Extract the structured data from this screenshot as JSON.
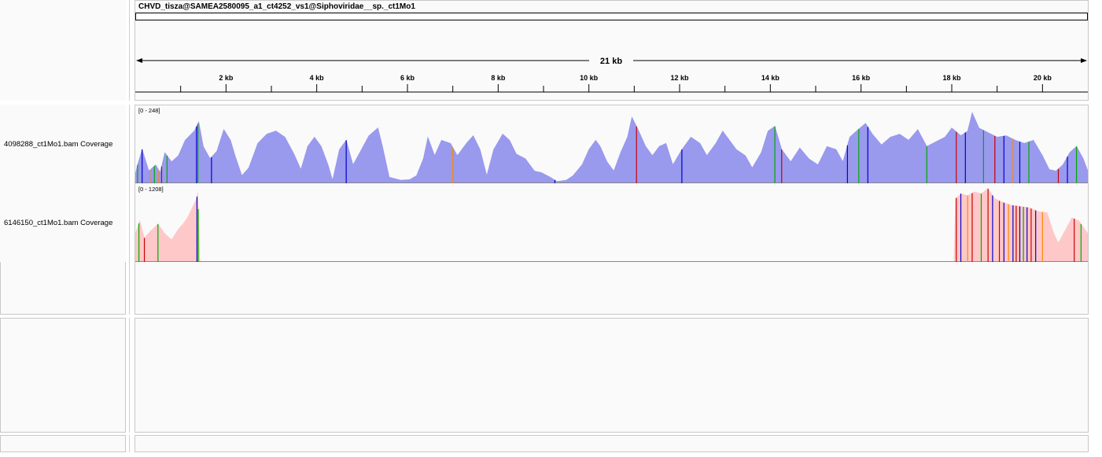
{
  "header": {
    "chromosome_name": "CHVD_tisza@SAMEA2580095_a1_ct4252_vs1@Siphoviridae__sp._ct1Mo1",
    "span_label": "21 kb",
    "ruler_ticks": [
      "2 kb",
      "4 kb",
      "6 kb",
      "8 kb",
      "10 kb",
      "12 kb",
      "14 kb",
      "16 kb",
      "18 kb",
      "20 kb"
    ],
    "genome_length_kb": 21
  },
  "tracks": [
    {
      "name": "4098288_ct1Mo1.bam Coverage",
      "range": "[0 - 248]",
      "color": "#9999ee",
      "max": 248,
      "profile": [
        [
          0.0,
          30
        ],
        [
          0.05,
          60
        ],
        [
          0.15,
          110
        ],
        [
          0.3,
          40
        ],
        [
          0.45,
          60
        ],
        [
          0.55,
          35
        ],
        [
          0.65,
          100
        ],
        [
          0.8,
          70
        ],
        [
          0.95,
          90
        ],
        [
          1.1,
          140
        ],
        [
          1.3,
          170
        ],
        [
          1.4,
          200
        ],
        [
          1.5,
          120
        ],
        [
          1.65,
          80
        ],
        [
          1.8,
          105
        ],
        [
          1.95,
          175
        ],
        [
          2.1,
          140
        ],
        [
          2.2,
          90
        ],
        [
          2.35,
          25
        ],
        [
          2.5,
          50
        ],
        [
          2.7,
          130
        ],
        [
          2.9,
          160
        ],
        [
          3.1,
          170
        ],
        [
          3.3,
          150
        ],
        [
          3.5,
          95
        ],
        [
          3.65,
          45
        ],
        [
          3.8,
          120
        ],
        [
          3.95,
          150
        ],
        [
          4.1,
          120
        ],
        [
          4.25,
          60
        ],
        [
          4.35,
          10
        ],
        [
          4.5,
          110
        ],
        [
          4.65,
          140
        ],
        [
          4.8,
          60
        ],
        [
          4.95,
          100
        ],
        [
          5.15,
          155
        ],
        [
          5.35,
          180
        ],
        [
          5.45,
          120
        ],
        [
          5.6,
          20
        ],
        [
          5.85,
          10
        ],
        [
          6.05,
          12
        ],
        [
          6.2,
          25
        ],
        [
          6.35,
          80
        ],
        [
          6.45,
          150
        ],
        [
          6.6,
          90
        ],
        [
          6.75,
          140
        ],
        [
          6.95,
          130
        ],
        [
          7.1,
          90
        ],
        [
          7.3,
          130
        ],
        [
          7.45,
          155
        ],
        [
          7.6,
          110
        ],
        [
          7.75,
          25
        ],
        [
          7.9,
          110
        ],
        [
          8.1,
          160
        ],
        [
          8.25,
          140
        ],
        [
          8.4,
          95
        ],
        [
          8.6,
          80
        ],
        [
          8.8,
          40
        ],
        [
          8.95,
          35
        ],
        [
          9.15,
          20
        ],
        [
          9.3,
          6
        ],
        [
          9.5,
          10
        ],
        [
          9.65,
          25
        ],
        [
          9.85,
          60
        ],
        [
          10.0,
          110
        ],
        [
          10.15,
          140
        ],
        [
          10.25,
          120
        ],
        [
          10.4,
          70
        ],
        [
          10.55,
          40
        ],
        [
          10.7,
          100
        ],
        [
          10.85,
          150
        ],
        [
          10.95,
          215
        ],
        [
          11.1,
          170
        ],
        [
          11.25,
          120
        ],
        [
          11.4,
          90
        ],
        [
          11.55,
          120
        ],
        [
          11.7,
          130
        ],
        [
          11.85,
          60
        ],
        [
          12.05,
          110
        ],
        [
          12.25,
          150
        ],
        [
          12.45,
          130
        ],
        [
          12.6,
          90
        ],
        [
          12.8,
          130
        ],
        [
          12.95,
          170
        ],
        [
          13.1,
          140
        ],
        [
          13.25,
          110
        ],
        [
          13.45,
          90
        ],
        [
          13.6,
          50
        ],
        [
          13.8,
          100
        ],
        [
          13.95,
          170
        ],
        [
          14.1,
          185
        ],
        [
          14.25,
          110
        ],
        [
          14.45,
          70
        ],
        [
          14.65,
          115
        ],
        [
          14.85,
          80
        ],
        [
          15.05,
          60
        ],
        [
          15.25,
          120
        ],
        [
          15.45,
          110
        ],
        [
          15.6,
          70
        ],
        [
          15.75,
          150
        ],
        [
          15.9,
          170
        ],
        [
          16.1,
          195
        ],
        [
          16.25,
          160
        ],
        [
          16.45,
          125
        ],
        [
          16.65,
          150
        ],
        [
          16.85,
          160
        ],
        [
          17.05,
          140
        ],
        [
          17.25,
          175
        ],
        [
          17.45,
          120
        ],
        [
          17.65,
          135
        ],
        [
          17.85,
          150
        ],
        [
          18.0,
          180
        ],
        [
          18.2,
          155
        ],
        [
          18.35,
          170
        ],
        [
          18.45,
          230
        ],
        [
          18.6,
          180
        ],
        [
          18.8,
          165
        ],
        [
          19.0,
          150
        ],
        [
          19.2,
          155
        ],
        [
          19.4,
          140
        ],
        [
          19.6,
          130
        ],
        [
          19.8,
          140
        ],
        [
          20.0,
          90
        ],
        [
          20.15,
          45
        ],
        [
          20.3,
          40
        ],
        [
          20.45,
          60
        ],
        [
          20.6,
          100
        ],
        [
          20.75,
          120
        ],
        [
          20.9,
          80
        ],
        [
          21.0,
          40
        ]
      ],
      "variants": [
        {
          "pos": 0.05,
          "color": "#00aa00"
        },
        {
          "pos": 0.15,
          "color": "#0000cc"
        },
        {
          "pos": 0.32,
          "color": "#ff8800"
        },
        {
          "pos": 0.42,
          "color": "#00aa00"
        },
        {
          "pos": 0.52,
          "color": "#ff8800"
        },
        {
          "pos": 0.58,
          "color": "#cc0000"
        },
        {
          "pos": 0.7,
          "color": "#00aa00"
        },
        {
          "pos": 1.35,
          "color": "#0000cc"
        },
        {
          "pos": 1.38,
          "color": "#00aa00"
        },
        {
          "pos": 1.68,
          "color": "#0000cc"
        },
        {
          "pos": 4.65,
          "color": "#0000cc"
        },
        {
          "pos": 7.0,
          "color": "#ff8800"
        },
        {
          "pos": 9.25,
          "color": "#0000cc"
        },
        {
          "pos": 11.05,
          "color": "#cc0000"
        },
        {
          "pos": 12.05,
          "color": "#0000cc"
        },
        {
          "pos": 14.1,
          "color": "#00aa00"
        },
        {
          "pos": 14.25,
          "color": "#cc0000"
        },
        {
          "pos": 15.7,
          "color": "#0000cc"
        },
        {
          "pos": 15.95,
          "color": "#00aa00"
        },
        {
          "pos": 16.15,
          "color": "#0000cc"
        },
        {
          "pos": 17.45,
          "color": "#00aa00"
        },
        {
          "pos": 18.1,
          "color": "#cc0000"
        },
        {
          "pos": 18.3,
          "color": "#0000cc"
        },
        {
          "pos": 18.7,
          "color": "#00aa00"
        },
        {
          "pos": 18.95,
          "color": "#cc0000"
        },
        {
          "pos": 19.15,
          "color": "#0000cc"
        },
        {
          "pos": 19.35,
          "color": "#ff8800"
        },
        {
          "pos": 19.5,
          "color": "#0000cc"
        },
        {
          "pos": 19.7,
          "color": "#00aa00"
        },
        {
          "pos": 20.35,
          "color": "#cc0000"
        },
        {
          "pos": 20.55,
          "color": "#0000cc"
        },
        {
          "pos": 20.75,
          "color": "#00aa00"
        }
      ]
    },
    {
      "name": "6146150_ct1Mo1.bam Coverage",
      "range": "[0 - 1208]",
      "color": "#ffc8c8",
      "max": 1208,
      "profile": [
        [
          0.0,
          450
        ],
        [
          0.1,
          650
        ],
        [
          0.2,
          380
        ],
        [
          0.35,
          500
        ],
        [
          0.5,
          600
        ],
        [
          0.65,
          450
        ],
        [
          0.8,
          350
        ],
        [
          0.95,
          520
        ],
        [
          1.05,
          600
        ],
        [
          1.15,
          700
        ],
        [
          1.25,
          850
        ],
        [
          1.35,
          1000
        ],
        [
          1.38,
          1100
        ],
        [
          1.42,
          40
        ],
        [
          1.45,
          0
        ],
        [
          18.05,
          0
        ],
        [
          18.08,
          1000
        ],
        [
          18.2,
          1080
        ],
        [
          18.35,
          1050
        ],
        [
          18.5,
          1110
        ],
        [
          18.65,
          1080
        ],
        [
          18.8,
          1160
        ],
        [
          18.95,
          1000
        ],
        [
          19.1,
          950
        ],
        [
          19.3,
          900
        ],
        [
          19.5,
          880
        ],
        [
          19.7,
          860
        ],
        [
          19.9,
          800
        ],
        [
          20.1,
          780
        ],
        [
          20.25,
          450
        ],
        [
          20.35,
          300
        ],
        [
          20.5,
          500
        ],
        [
          20.65,
          700
        ],
        [
          20.8,
          650
        ],
        [
          21.0,
          450
        ]
      ],
      "variants": [
        {
          "pos": 0.08,
          "color": "#00aa00"
        },
        {
          "pos": 0.2,
          "color": "#cc0000"
        },
        {
          "pos": 0.5,
          "color": "#00aa00"
        },
        {
          "pos": 1.36,
          "color": "#0000cc"
        },
        {
          "pos": 1.39,
          "color": "#00aa00"
        },
        {
          "pos": 18.1,
          "color": "#cc0000"
        },
        {
          "pos": 18.2,
          "color": "#0000cc"
        },
        {
          "pos": 18.35,
          "color": "#ff8800"
        },
        {
          "pos": 18.45,
          "color": "#cc0000"
        },
        {
          "pos": 18.65,
          "color": "#00aa00"
        },
        {
          "pos": 18.8,
          "color": "#cc0000"
        },
        {
          "pos": 18.9,
          "color": "#0000cc"
        },
        {
          "pos": 19.05,
          "color": "#cc0000"
        },
        {
          "pos": 19.15,
          "color": "#0000cc"
        },
        {
          "pos": 19.25,
          "color": "#ff8800"
        },
        {
          "pos": 19.35,
          "color": "#0000cc"
        },
        {
          "pos": 19.42,
          "color": "#cc0000"
        },
        {
          "pos": 19.5,
          "color": "#0000cc"
        },
        {
          "pos": 19.58,
          "color": "#00aa00"
        },
        {
          "pos": 19.66,
          "color": "#0000cc"
        },
        {
          "pos": 19.75,
          "color": "#cc0000"
        },
        {
          "pos": 19.85,
          "color": "#0000cc"
        },
        {
          "pos": 20.0,
          "color": "#ff8800"
        },
        {
          "pos": 20.7,
          "color": "#cc0000"
        },
        {
          "pos": 20.85,
          "color": "#00aa00"
        }
      ]
    }
  ]
}
